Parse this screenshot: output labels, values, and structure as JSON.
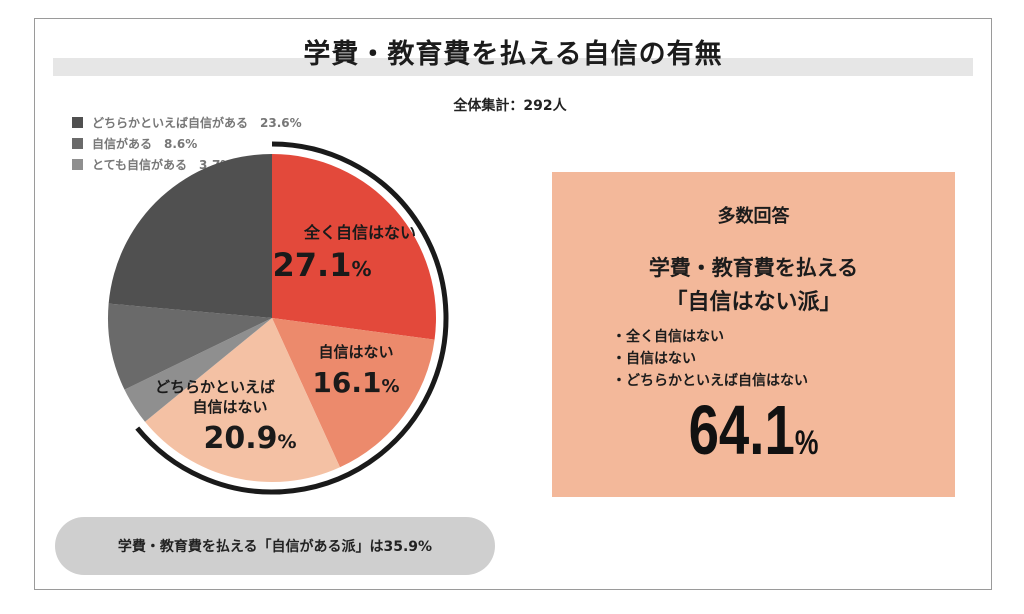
{
  "title": "学費・教育費を払える自信の有無",
  "total_label": "全体集計：292人",
  "legend": [
    {
      "label": "どちらかといえば自信がある",
      "value": "23.6%",
      "color": "#505050"
    },
    {
      "label": "自信がある",
      "value": "8.6%",
      "color": "#6a6a6a"
    },
    {
      "label": "とても自信がある",
      "value": "3.7%",
      "color": "#8f8f8f"
    }
  ],
  "pie_labels": [
    {
      "label1": "全く自信はない",
      "label2": "",
      "pct": "27.1",
      "unit": "%"
    },
    {
      "label1": "自信はない",
      "label2": "",
      "pct": "16.1",
      "unit": "%"
    },
    {
      "label1": "どちらかといえば",
      "label2": "自信はない",
      "pct": "20.9",
      "unit": "%"
    }
  ],
  "summary": {
    "heading": "多数回答",
    "title_line1": "学費・教育費を払える",
    "title_line2": "「自信はない派」",
    "items": [
      "・全く自信はない",
      "・自信はない",
      "・どちらかといえば自信はない"
    ],
    "total_value": "64.1",
    "total_unit": "%"
  },
  "footer": "学費・教育費を払える「自信がある派」は35.9%",
  "chart_data": {
    "type": "pie",
    "title": "学費・教育費を払える自信の有無",
    "total": "292人",
    "categories": [
      "全く自信はない",
      "自信はない",
      "どちらかといえば自信はない",
      "とても自信がある",
      "自信がある",
      "どちらかといえば自信がある"
    ],
    "values": [
      27.1,
      16.1,
      20.9,
      3.7,
      8.6,
      23.6
    ],
    "colors": [
      "#e3493b",
      "#ec8a6c",
      "#f4c1a4",
      "#8f8f8f",
      "#6a6a6a",
      "#505050"
    ],
    "start": "12 o'clock",
    "direction": "clockwise",
    "highlight_group": [
      "全く自信はない",
      "自信はない",
      "どちらかといえば自信はない"
    ],
    "highlight_total": 64.1
  }
}
